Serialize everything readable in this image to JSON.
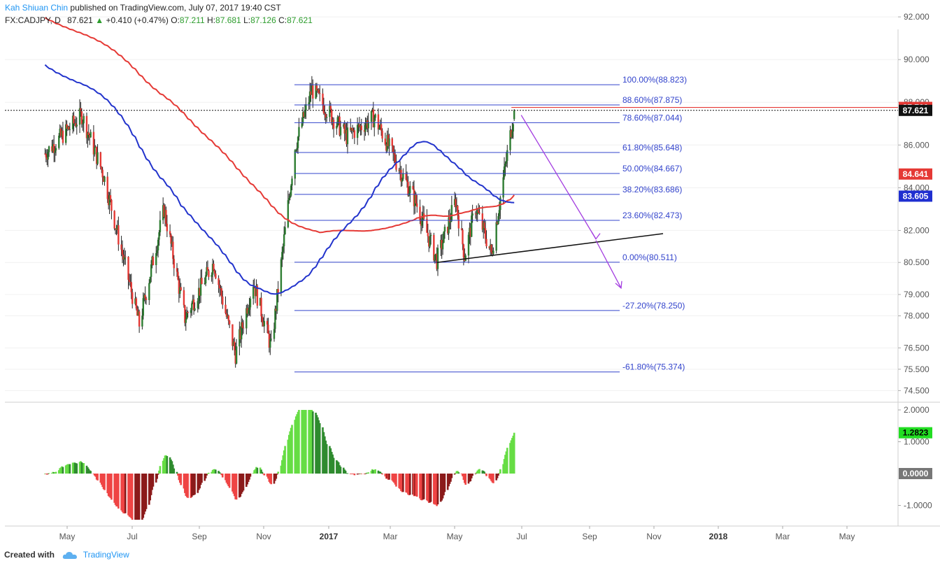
{
  "header": {
    "author": "Kah Shiuan Chin",
    "published": "published on TradingView.com, July 07, 2017 19:40 CST",
    "symbol": "FX:CADJPY, D",
    "last": "87.621",
    "change": "+0.410 (+0.47%)",
    "o_label": "O:",
    "o": "87.211",
    "h_label": "H:",
    "h": "87.681",
    "l_label": "L:",
    "l": "87.126",
    "c_label": "C:",
    "c": "87.621"
  },
  "footer": {
    "created_with": "Created with",
    "brand": "TradingView"
  },
  "colors": {
    "up": "#2e7d32",
    "down": "#e53935",
    "ma_red": "#e53935",
    "ma_blue": "#2233cc",
    "fib": "#3344cc",
    "fib_text": "#3344cc",
    "arrow": "#a33de0",
    "hist_pos": "#66dd44",
    "hist_pos_dark": "#2e8b2e",
    "hist_neg": "#ef4444",
    "hist_neg_dark": "#8b1a1a",
    "axis_text": "#555555",
    "grid": "#f0f0f0"
  },
  "chart_data": [
    {
      "type": "candlestick",
      "symbol": "FX:CADJPY",
      "timeframe": "D",
      "y_ticks": [
        "92.000",
        "90.000",
        "88.000",
        "86.000",
        "84.000",
        "82.000",
        "80.500",
        "79.000",
        "78.000",
        "76.500",
        "75.500",
        "74.500"
      ],
      "x_ticks": [
        "May",
        "Jul",
        "Sep",
        "Nov",
        "2017",
        "Mar",
        "May",
        "Jul",
        "Sep",
        "Nov",
        "2018",
        "Mar",
        "May"
      ],
      "price_labels": [
        {
          "text": "87.760",
          "bg": "#e53935",
          "color": "#ffffff",
          "value": 87.76
        },
        {
          "text": "87.621",
          "bg": "#111111",
          "color": "#ffffff",
          "value": 87.621
        },
        {
          "text": "84.641",
          "bg": "#e53935",
          "color": "#ffffff",
          "value": 84.641
        },
        {
          "text": "83.605",
          "bg": "#1f2fd0",
          "color": "#ffffff",
          "value": 83.605
        }
      ],
      "fib_levels": [
        {
          "label": "100.00%(88.823)",
          "value": 88.823
        },
        {
          "label": "88.60%(87.875)",
          "value": 87.875
        },
        {
          "label": "78.60%(87.044)",
          "value": 87.044
        },
        {
          "label": "61.80%(85.648)",
          "value": 85.648
        },
        {
          "label": "50.00%(84.667)",
          "value": 84.667
        },
        {
          "label": "38.20%(83.686)",
          "value": 83.686
        },
        {
          "label": "23.60%(82.473)",
          "value": 82.473
        },
        {
          "label": "0.00%(80.511)",
          "value": 80.511
        },
        {
          "label": "-27.20%(78.250)",
          "value": 78.25
        },
        {
          "label": "-61.80%(75.374)",
          "value": 75.374
        }
      ],
      "key_points": [
        {
          "date": "2016-03-21",
          "close": 85.6
        },
        {
          "date": "2016-04-27",
          "close": 87.4
        },
        {
          "date": "2016-05-19",
          "close": 84.6
        },
        {
          "date": "2016-06-24",
          "close": 77.6
        },
        {
          "date": "2016-07-19",
          "close": 83.0
        },
        {
          "date": "2016-08-09",
          "close": 77.9
        },
        {
          "date": "2016-09-07",
          "close": 80.5
        },
        {
          "date": "2016-09-29",
          "close": 76.2
        },
        {
          "date": "2016-10-17",
          "close": 79.6
        },
        {
          "date": "2016-11-04",
          "close": 76.5
        },
        {
          "date": "2016-11-28",
          "close": 85.9
        },
        {
          "date": "2016-12-15",
          "close": 88.6
        },
        {
          "date": "2017-01-19",
          "close": 86.4
        },
        {
          "date": "2017-02-16",
          "close": 87.3
        },
        {
          "date": "2017-03-30",
          "close": 83.3
        },
        {
          "date": "2017-04-20",
          "close": 80.6
        },
        {
          "date": "2017-05-09",
          "close": 83.4
        },
        {
          "date": "2017-05-18",
          "close": 80.8
        },
        {
          "date": "2017-05-29",
          "close": 83.1
        },
        {
          "date": "2017-06-14",
          "close": 80.9
        },
        {
          "date": "2017-07-07",
          "close": 87.62
        }
      ]
    },
    {
      "type": "histogram",
      "y_ticks": [
        "2.0000",
        "1.0000",
        "-1.0000"
      ],
      "value_labels": [
        {
          "text": "1.2823",
          "bg": "#22dd22",
          "color": "#000000",
          "value": 1.2823
        },
        {
          "text": "0.0000",
          "bg": "#777777",
          "color": "#ffffff",
          "value": 0.0
        }
      ]
    }
  ]
}
